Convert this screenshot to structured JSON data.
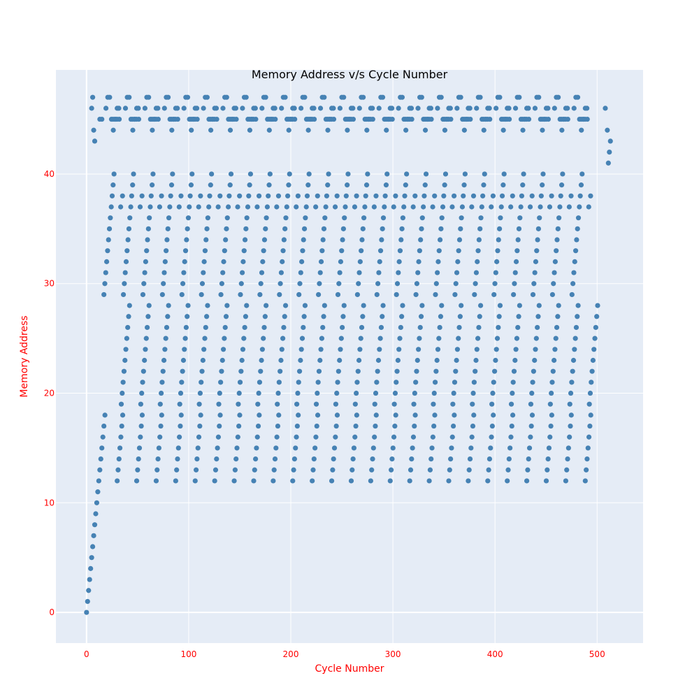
{
  "chart_data": {
    "type": "scatter",
    "title": "Memory Address v/s Cycle Number",
    "xlabel": "Cycle Number",
    "ylabel": "Memory Address",
    "xlim": [
      -30,
      545
    ],
    "ylim": [
      -2.8,
      49.5
    ],
    "xticks": [
      0,
      100,
      200,
      300,
      400,
      500
    ],
    "yticks": [
      0,
      10,
      20,
      30,
      40
    ],
    "grid": true,
    "legend": "none",
    "colors": {
      "plot_bg": "#e5ecf6",
      "grid": "#ffffff",
      "marker": "#4682b4",
      "axis_text": "#ff0000",
      "title_text": "#000000"
    },
    "pattern": {
      "prefix": [
        [
          0,
          0
        ],
        [
          1,
          1
        ],
        [
          2,
          2
        ],
        [
          3,
          3
        ],
        [
          4,
          4
        ],
        [
          5,
          5
        ],
        [
          6,
          6
        ],
        [
          7,
          7
        ],
        [
          8,
          8
        ],
        [
          9,
          9
        ],
        [
          10,
          10
        ],
        [
          11,
          11
        ],
        [
          12,
          12
        ],
        [
          13,
          13
        ],
        [
          14,
          14
        ],
        [
          15,
          15
        ],
        [
          16,
          16
        ],
        [
          17,
          17
        ],
        [
          18,
          18
        ],
        [
          5,
          46
        ],
        [
          6,
          47
        ],
        [
          7,
          44
        ],
        [
          8,
          43
        ],
        [
          13,
          45
        ],
        [
          15,
          45
        ]
      ],
      "period": 19.1,
      "cycles": 25,
      "low_run_y": [
        12,
        13,
        14,
        15,
        16,
        17,
        18
      ],
      "mid_run_y": [
        19,
        20,
        21,
        22,
        23,
        24,
        25,
        26,
        27,
        28
      ],
      "high_run_y": [
        29,
        30,
        31,
        32,
        33,
        34,
        35,
        36,
        37,
        38,
        39,
        40
      ],
      "top_y": [
        46,
        47,
        47,
        45,
        44,
        45,
        45,
        46,
        37,
        38
      ],
      "tail": [
        [
          510,
          44
        ],
        [
          511,
          41
        ],
        [
          512,
          42
        ],
        [
          513,
          43
        ],
        [
          508,
          46
        ]
      ]
    }
  }
}
